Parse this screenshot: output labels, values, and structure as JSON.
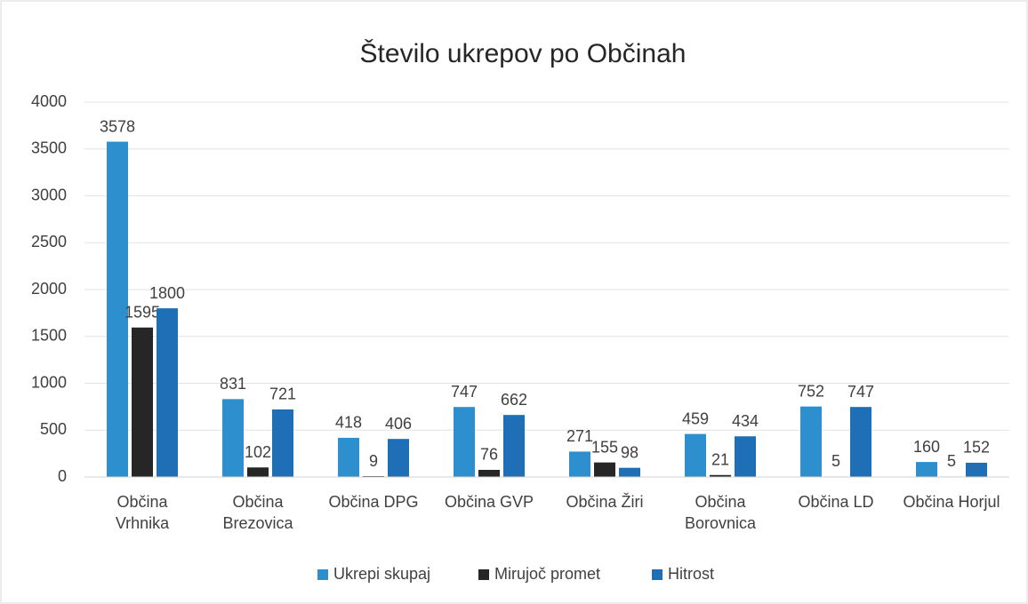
{
  "chart_data": {
    "type": "bar",
    "title": "Število ukrepov po Občinah",
    "categories": [
      "Občina Vrhnika",
      "Občina Brezovica",
      "Občina DPG",
      "Občina GVP",
      "Občina Žiri",
      "Občina Borovnica",
      "Občina LD",
      "Občina Horjul"
    ],
    "series": [
      {
        "name": "Ukrepi skupaj",
        "color": "#2e8fcf",
        "values": [
          3578,
          831,
          418,
          747,
          271,
          459,
          752,
          160
        ]
      },
      {
        "name": "Mirujoč promet",
        "color": "#262626",
        "values": [
          1595,
          102,
          9,
          76,
          155,
          21,
          5,
          5
        ]
      },
      {
        "name": "Hitrost",
        "color": "#1f6fb6",
        "values": [
          1800,
          721,
          406,
          662,
          98,
          434,
          747,
          152
        ]
      }
    ],
    "ylim": [
      0,
      4000
    ],
    "yticks": [
      0,
      500,
      1000,
      1500,
      2000,
      2500,
      3000,
      3500,
      4000
    ],
    "grid": true,
    "legend": "bottom"
  }
}
